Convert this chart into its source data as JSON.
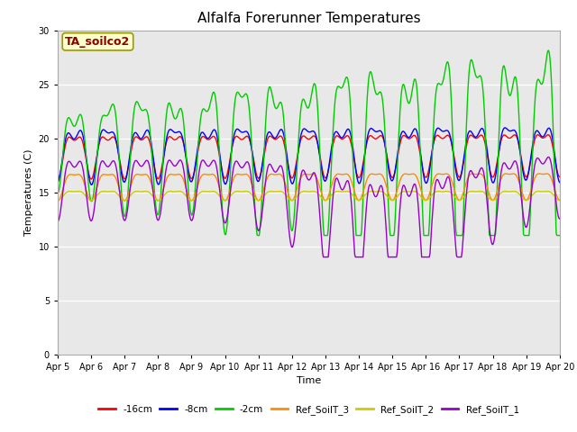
{
  "title": "Alfalfa Forerunner Temperatures",
  "xlabel": "Time",
  "ylabel": "Temperatures (C)",
  "ylim": [
    0,
    30
  ],
  "yticks": [
    0,
    5,
    10,
    15,
    20,
    25,
    30
  ],
  "background_color": "#e8e8e8",
  "fig_background": "#ffffff",
  "annotation_text": "TA_soilco2",
  "annotation_color": "#8b0000",
  "annotation_bg": "#ffffcc",
  "series_colors": {
    "-16cm": "#ff0000",
    "-8cm": "#0000ff",
    "-2cm": "#00cc00",
    "Ref_SoilT_3": "#ff8c00",
    "Ref_SoilT_2": "#cccc00",
    "Ref_SoilT_1": "#9900cc"
  },
  "x_tick_labels": [
    "Apr 5",
    "Apr 6",
    "Apr 7",
    "Apr 8",
    "Apr 9",
    "Apr 10",
    "Apr 11",
    "Apr 12",
    "Apr 13",
    "Apr 14",
    "Apr 15",
    "Apr 16",
    "Apr 17",
    "Apr 18",
    "Apr 19",
    "Apr 20"
  ],
  "n_points": 721,
  "date_start": 0,
  "date_end": 15
}
